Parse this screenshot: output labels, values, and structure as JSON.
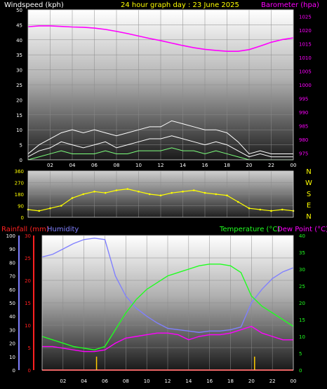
{
  "header": {
    "windspeed_label": "Windspeed (kph)",
    "title": "24 hour graph day : 23 June 2025",
    "barometer_label": "Barometer (hpa)"
  },
  "bottom_header": {
    "rainfall_label": "Rainfall (mm)",
    "humidity_label": "Humidity",
    "temperature_label": "Temperature (°C)",
    "dewpoint_label": "Dew Point (°C)"
  },
  "colors": {
    "background": "#000000",
    "windspeed": "#ffffff",
    "gust": "#ffffff",
    "wind_green": "#7cff7c",
    "barometer": "#ff00ff",
    "title": "#ffff00",
    "direction": "#ffff00",
    "rainfall": "#ff2020",
    "humidity": "#8080ff",
    "temperature": "#20ff20",
    "dewpoint": "#ff00ff",
    "rain_rate": "#ffcc00"
  },
  "chart_data": [
    {
      "type": "line",
      "name": "wind-barometer",
      "x_ticks": [
        "02",
        "04",
        "06",
        "08",
        "10",
        "12",
        "14",
        "16",
        "18",
        "20",
        "22",
        "00"
      ],
      "left_axis": {
        "ticks": [
          0,
          5,
          10,
          15,
          20,
          25,
          30,
          35,
          40,
          45,
          50
        ],
        "ylim": [
          0,
          50
        ]
      },
      "right_axis": {
        "ticks": [
          975,
          980,
          985,
          990,
          995,
          1000,
          1005,
          1010,
          1015,
          1020,
          1025
        ],
        "ylim": [
          972.5,
          1027.5
        ]
      },
      "series": [
        {
          "key": "barometer",
          "axis": "right",
          "x": [
            0,
            1,
            2,
            3,
            4,
            5,
            6,
            7,
            8,
            9,
            10,
            11,
            12,
            13,
            14,
            15,
            16,
            17,
            18,
            19,
            20,
            21,
            22,
            23,
            24
          ],
          "y": [
            1021.3,
            1021.6,
            1021.6,
            1021.4,
            1021.2,
            1021.1,
            1020.8,
            1020.3,
            1019.6,
            1018.8,
            1017.9,
            1017.0,
            1016.2,
            1015.3,
            1014.4,
            1013.6,
            1013.0,
            1012.6,
            1012.3,
            1012.3,
            1012.9,
            1014.2,
            1015.6,
            1016.6,
            1017.2
          ]
        },
        {
          "key": "windspeed",
          "axis": "left",
          "x": [
            0,
            1,
            2,
            3,
            4,
            5,
            6,
            7,
            8,
            9,
            10,
            11,
            12,
            13,
            14,
            15,
            16,
            17,
            18,
            19,
            20,
            21,
            22,
            23,
            24
          ],
          "y": [
            1,
            3,
            4,
            6,
            5,
            4,
            5,
            6,
            4,
            5,
            6,
            7,
            7,
            8,
            7,
            6,
            5,
            6,
            5,
            3,
            1,
            2,
            1,
            1,
            1
          ]
        },
        {
          "key": "gust",
          "axis": "left",
          "x": [
            0,
            1,
            2,
            3,
            4,
            5,
            6,
            7,
            8,
            9,
            10,
            11,
            12,
            13,
            14,
            15,
            16,
            17,
            18,
            19,
            20,
            21,
            22,
            23,
            24
          ],
          "y": [
            2,
            5,
            7,
            9,
            10,
            9,
            10,
            9,
            8,
            9,
            10,
            11,
            11,
            13,
            12,
            11,
            10,
            10,
            9,
            6,
            2,
            3,
            2,
            2,
            2
          ]
        },
        {
          "key": "wind_average",
          "axis": "left",
          "x": [
            0,
            1,
            2,
            3,
            4,
            5,
            6,
            7,
            8,
            9,
            10,
            11,
            12,
            13,
            14,
            15,
            16,
            17,
            18,
            19,
            20,
            21,
            22,
            23,
            24
          ],
          "y": [
            0,
            1,
            2,
            3,
            2,
            2,
            2,
            3,
            2,
            2,
            3,
            3,
            3,
            4,
            3,
            3,
            2,
            3,
            2,
            1,
            0,
            0,
            0,
            0,
            0
          ]
        }
      ]
    },
    {
      "type": "scatter",
      "name": "wind-direction",
      "x_ticks": [],
      "left_axis": {
        "ticks": [
          0,
          90,
          180,
          270,
          360
        ],
        "ylim": [
          0,
          360
        ]
      },
      "compass_labels": [
        "N",
        "W",
        "S",
        "E",
        "N"
      ],
      "series": [
        {
          "key": "direction",
          "x": [
            0,
            1,
            2,
            3,
            4,
            5,
            6,
            7,
            8,
            9,
            10,
            11,
            12,
            13,
            14,
            15,
            16,
            17,
            18,
            19,
            20,
            21,
            22,
            23,
            24
          ],
          "y": [
            60,
            50,
            70,
            90,
            150,
            180,
            200,
            190,
            210,
            220,
            200,
            180,
            170,
            190,
            200,
            210,
            190,
            180,
            170,
            120,
            70,
            60,
            50,
            60,
            50
          ]
        }
      ]
    },
    {
      "type": "line",
      "name": "temperature-humidity",
      "x_ticks": [
        "02",
        "04",
        "06",
        "08",
        "10",
        "12",
        "14",
        "16",
        "18",
        "20",
        "22",
        "00"
      ],
      "humidity_axis": {
        "ticks": [
          0,
          10,
          20,
          30,
          40,
          50,
          60,
          70,
          80,
          90,
          100
        ],
        "ylim": [
          0,
          100
        ]
      },
      "rain_axis": {
        "ticks": [
          0,
          5,
          10,
          15,
          20,
          25,
          30
        ],
        "ylim": [
          0,
          30
        ]
      },
      "temp_axis": {
        "ticks": [
          0,
          5,
          10,
          15,
          20,
          25,
          30,
          35,
          40
        ],
        "ylim": [
          0,
          40
        ]
      },
      "series": [
        {
          "key": "humidity",
          "axis": "humidity",
          "x": [
            0,
            1,
            2,
            3,
            4,
            5,
            6,
            7,
            8,
            9,
            10,
            11,
            12,
            13,
            14,
            15,
            16,
            17,
            18,
            19,
            20,
            21,
            22,
            23,
            24
          ],
          "y": [
            84,
            86,
            90,
            94,
            97,
            98,
            97,
            70,
            55,
            46,
            40,
            35,
            31,
            30,
            29,
            28,
            29,
            29,
            30,
            32,
            50,
            60,
            68,
            73,
            76
          ]
        },
        {
          "key": "temperature",
          "axis": "temp",
          "x": [
            0,
            1,
            2,
            3,
            4,
            5,
            6,
            7,
            8,
            9,
            10,
            11,
            12,
            13,
            14,
            15,
            16,
            17,
            18,
            19,
            20,
            21,
            22,
            23,
            24
          ],
          "y": [
            10,
            9,
            8,
            7,
            6.5,
            6,
            7,
            12,
            17,
            21,
            24,
            26,
            28,
            29,
            30,
            31,
            31.5,
            31.5,
            31,
            29,
            22,
            19,
            17,
            15,
            13
          ]
        },
        {
          "key": "dewpoint",
          "axis": "temp",
          "x": [
            0,
            1,
            2,
            3,
            4,
            5,
            6,
            7,
            8,
            9,
            10,
            11,
            12,
            13,
            14,
            15,
            16,
            17,
            18,
            19,
            20,
            21,
            22,
            23,
            24
          ],
          "y": [
            7,
            7,
            6.5,
            6,
            5.5,
            5.5,
            6,
            8,
            9.5,
            10,
            10.5,
            11,
            11,
            10.5,
            9,
            10,
            10.5,
            10.5,
            11,
            12,
            13,
            11,
            10,
            9,
            9
          ]
        },
        {
          "key": "rainfall",
          "axis": "rain",
          "x": [
            0,
            24
          ],
          "y": [
            0,
            0
          ]
        },
        {
          "key": "rain_rate",
          "axis": "rain",
          "type": "bar",
          "x": [
            5.2,
            20.3
          ],
          "y": [
            3,
            3
          ]
        }
      ]
    }
  ]
}
